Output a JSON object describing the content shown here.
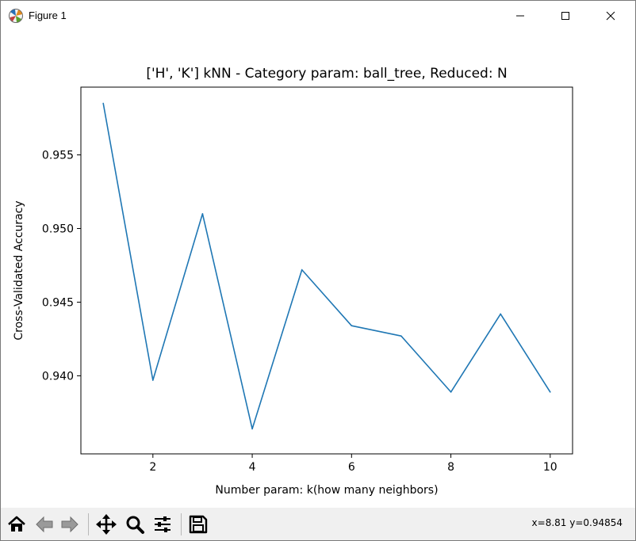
{
  "window": {
    "title": "Figure 1",
    "icons": {
      "app": "matplotlib-figure-icon",
      "minimize": "minimize-icon",
      "maximize": "maximize-icon",
      "close": "close-icon"
    }
  },
  "toolbar": {
    "tools": [
      {
        "name": "home-icon",
        "tooltip": "Home"
      },
      {
        "name": "back-arrow-icon",
        "tooltip": "Back"
      },
      {
        "name": "forward-arrow-icon",
        "tooltip": "Forward"
      },
      {
        "name": "pan-icon",
        "tooltip": "Pan"
      },
      {
        "name": "zoom-icon",
        "tooltip": "Zoom"
      },
      {
        "name": "configure-subplots-icon",
        "tooltip": "Subplots"
      },
      {
        "name": "save-icon",
        "tooltip": "Save"
      }
    ],
    "coords": "x=8.81 y=0.94854"
  },
  "chart_data": {
    "type": "line",
    "title": "['H', 'K'] kNN - Category param: ball_tree, Reduced: N",
    "xlabel": "Number param: k(how many neighbors)",
    "ylabel": "Cross-Validated Accuracy",
    "xlim": [
      0.55,
      10.45
    ],
    "ylim": [
      0.9347,
      0.9596
    ],
    "xticks": [
      2,
      4,
      6,
      8,
      10
    ],
    "xtick_labels": [
      "2",
      "4",
      "6",
      "8",
      "10"
    ],
    "yticks": [
      0.94,
      0.945,
      0.95,
      0.955
    ],
    "ytick_labels": [
      "0.940",
      "0.945",
      "0.950",
      "0.955"
    ],
    "grid": false,
    "color": "#1f77b4",
    "x": [
      1,
      2,
      3,
      4,
      5,
      6,
      7,
      8,
      9,
      10
    ],
    "y": [
      0.9585,
      0.9397,
      0.951,
      0.9364,
      0.9472,
      0.9434,
      0.9427,
      0.9389,
      0.9442,
      0.9389
    ]
  }
}
